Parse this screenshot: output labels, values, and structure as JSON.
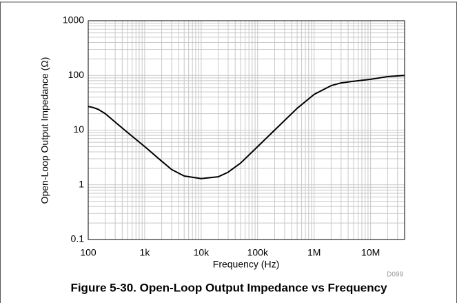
{
  "chart_data": {
    "type": "line",
    "y_label": "Open-Loop Output Impedance (Ω)",
    "x_label": "Frequency (Hz)",
    "code": "D099",
    "caption": "Figure 5-30. Open-Loop Output Impedance vs Frequency",
    "x": [
      100,
      120,
      150,
      200,
      300,
      500,
      1000,
      2000,
      3000,
      5000,
      10000,
      20000,
      30000,
      50000,
      100000,
      200000,
      500000,
      1000000,
      2000000,
      3000000,
      5000000,
      10000000,
      20000000,
      40000000
    ],
    "values": [
      27,
      26,
      24,
      20,
      14,
      9,
      5,
      2.7,
      1.9,
      1.45,
      1.3,
      1.4,
      1.7,
      2.5,
      5,
      10,
      25,
      45,
      65,
      73,
      78,
      85,
      95,
      100
    ],
    "color": "#000000",
    "xlog": true,
    "ylog": true,
    "grid": true,
    "minor_grid": true,
    "xlim": [
      100,
      40000000
    ],
    "ylim": [
      0.1,
      1000
    ],
    "xticks": [
      {
        "value": 100,
        "label": "100"
      },
      {
        "value": 1000,
        "label": "1k"
      },
      {
        "value": 10000,
        "label": "10k"
      },
      {
        "value": 100000,
        "label": "100k"
      },
      {
        "value": 1000000,
        "label": "1M"
      },
      {
        "value": 10000000,
        "label": "10M"
      }
    ],
    "yticks": [
      1000,
      100,
      10,
      1,
      0.1
    ]
  }
}
